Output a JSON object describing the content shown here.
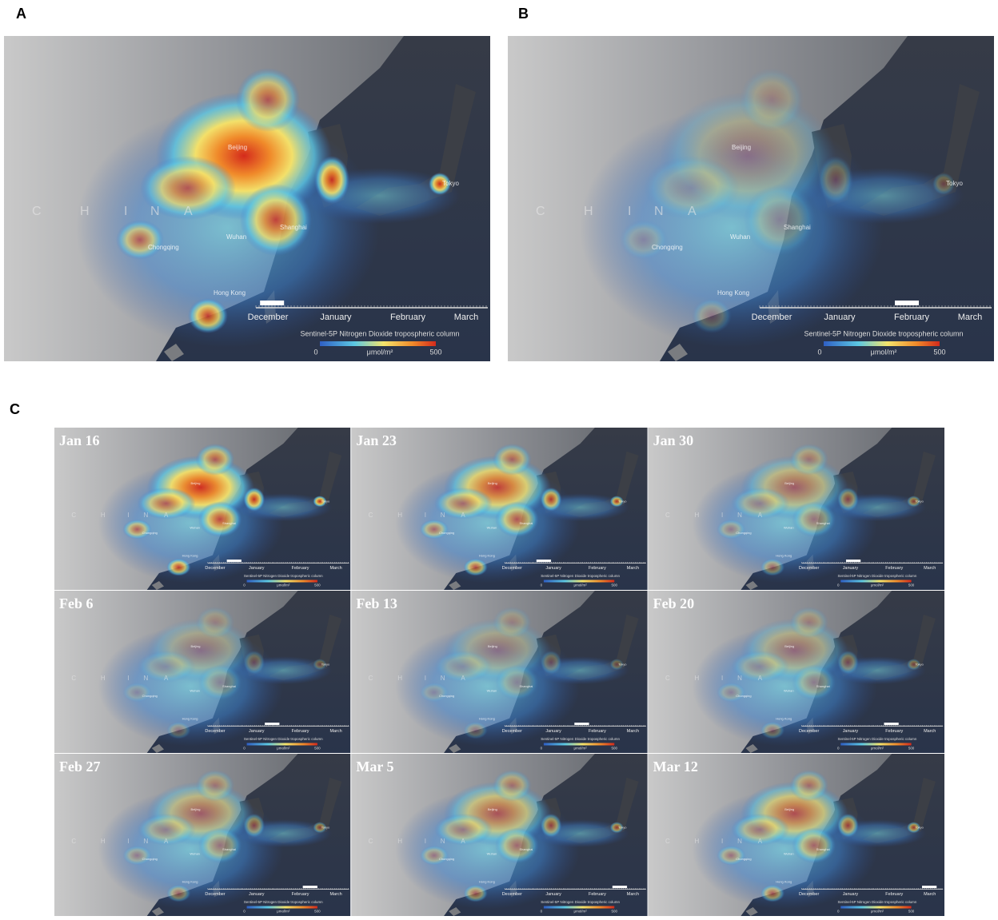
{
  "panels": [
    {
      "label": "A"
    },
    {
      "label": "B"
    },
    {
      "label": "C",
      "maps": [
        {
          "date": "Jan 16"
        },
        {
          "date": "Jan 23"
        },
        {
          "date": "Jan 30"
        },
        {
          "date": "Feb 6"
        },
        {
          "date": "Feb 13"
        },
        {
          "date": "Feb 20"
        },
        {
          "date": "Feb 27"
        },
        {
          "date": "Mar 5"
        },
        {
          "date": "Mar 12"
        }
      ]
    }
  ],
  "map_text": {
    "country_letters": [
      "C",
      "H",
      "I",
      "N",
      "A"
    ],
    "cities": [
      "Beijing",
      "Shanghai",
      "Wuhan",
      "Chongqing",
      "Hong Kong",
      "Tokyo"
    ]
  },
  "timeline": [
    "December",
    "January",
    "February",
    "March"
  ],
  "legend": {
    "title": "Sentinel-5P Nitrogen Dioxide tropospheric column",
    "min": 0,
    "unit": "μmol/m²",
    "max": 500
  }
}
